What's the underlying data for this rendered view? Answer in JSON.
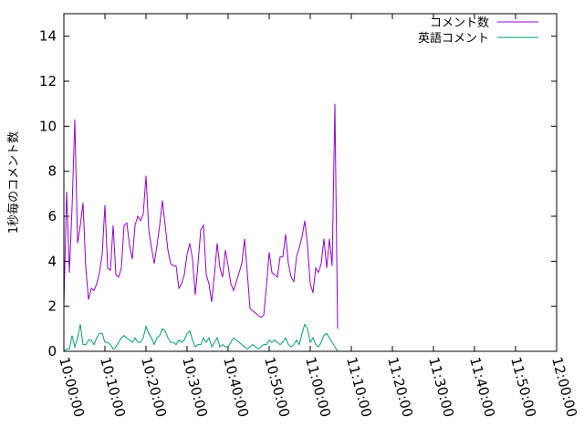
{
  "chart_data": {
    "type": "line",
    "title": "",
    "ylabel": "1秒毎のコメント数",
    "xlabel": "",
    "ylim": [
      0,
      15
    ],
    "xlim": [
      "10:00:00",
      "12:00:00"
    ],
    "y_ticks": [
      "0",
      "2",
      "4",
      "6",
      "8",
      "10",
      "12",
      "14"
    ],
    "x_ticks": [
      "10:00:00",
      "10:10:00",
      "10:20:00",
      "10:30:00",
      "10:40:00",
      "10:50:00",
      "11:00:00",
      "11:10:00",
      "11:20:00",
      "11:30:00",
      "11:40:00",
      "11:50:00",
      "12:00:00"
    ],
    "grid": false,
    "legend_position": "top-right",
    "series": [
      {
        "name": "コメント数",
        "color": "#9400d3",
        "points": [
          [
            "10:00:00",
            2.0
          ],
          [
            "10:00:40",
            7.1
          ],
          [
            "10:01:20",
            3.5
          ],
          [
            "10:02:00",
            6.4
          ],
          [
            "10:02:40",
            10.3
          ],
          [
            "10:03:20",
            4.8
          ],
          [
            "10:04:00",
            5.6
          ],
          [
            "10:04:40",
            6.6
          ],
          [
            "10:05:20",
            3.7
          ],
          [
            "10:06:00",
            2.3
          ],
          [
            "10:06:40",
            2.8
          ],
          [
            "10:07:20",
            2.7
          ],
          [
            "10:08:00",
            3.0
          ],
          [
            "10:08:40",
            3.5
          ],
          [
            "10:09:20",
            4.3
          ],
          [
            "10:10:00",
            6.5
          ],
          [
            "10:10:40",
            3.7
          ],
          [
            "10:11:20",
            3.6
          ],
          [
            "10:12:00",
            5.6
          ],
          [
            "10:12:40",
            3.4
          ],
          [
            "10:13:20",
            3.3
          ],
          [
            "10:14:00",
            3.7
          ],
          [
            "10:14:40",
            5.6
          ],
          [
            "10:15:20",
            5.7
          ],
          [
            "10:16:00",
            4.7
          ],
          [
            "10:16:40",
            4.1
          ],
          [
            "10:17:20",
            5.6
          ],
          [
            "10:18:00",
            6.0
          ],
          [
            "10:18:40",
            5.8
          ],
          [
            "10:19:20",
            6.1
          ],
          [
            "10:20:00",
            7.8
          ],
          [
            "10:20:40",
            5.4
          ],
          [
            "10:21:20",
            4.6
          ],
          [
            "10:22:00",
            3.9
          ],
          [
            "10:22:40",
            4.7
          ],
          [
            "10:23:20",
            5.6
          ],
          [
            "10:24:00",
            6.7
          ],
          [
            "10:24:40",
            5.6
          ],
          [
            "10:25:20",
            4.5
          ],
          [
            "10:26:00",
            3.9
          ],
          [
            "10:26:40",
            3.8
          ],
          [
            "10:27:20",
            3.8
          ],
          [
            "10:28:00",
            2.8
          ],
          [
            "10:28:40",
            3.0
          ],
          [
            "10:29:20",
            3.4
          ],
          [
            "10:30:00",
            4.3
          ],
          [
            "10:30:40",
            4.8
          ],
          [
            "10:31:20",
            4.1
          ],
          [
            "10:32:00",
            2.5
          ],
          [
            "10:32:40",
            3.9
          ],
          [
            "10:33:20",
            5.4
          ],
          [
            "10:34:00",
            5.6
          ],
          [
            "10:34:40",
            3.4
          ],
          [
            "10:35:20",
            3.0
          ],
          [
            "10:36:00",
            2.2
          ],
          [
            "10:36:40",
            3.4
          ],
          [
            "10:37:20",
            4.8
          ],
          [
            "10:38:00",
            3.7
          ],
          [
            "10:38:40",
            3.3
          ],
          [
            "10:39:20",
            4.5
          ],
          [
            "10:40:00",
            3.8
          ],
          [
            "10:40:40",
            3.0
          ],
          [
            "10:41:20",
            2.7
          ],
          [
            "10:42:00",
            3.1
          ],
          [
            "10:42:40",
            3.5
          ],
          [
            "10:43:20",
            3.9
          ],
          [
            "10:44:00",
            5.0
          ],
          [
            "10:44:40",
            3.5
          ],
          [
            "10:45:20",
            1.9
          ],
          [
            "10:46:00",
            1.8
          ],
          [
            "10:46:40",
            1.7
          ],
          [
            "10:47:20",
            1.6
          ],
          [
            "10:48:00",
            1.5
          ],
          [
            "10:48:40",
            1.6
          ],
          [
            "10:49:20",
            2.9
          ],
          [
            "10:50:00",
            4.4
          ],
          [
            "10:50:40",
            3.5
          ],
          [
            "10:51:20",
            3.4
          ],
          [
            "10:52:00",
            3.3
          ],
          [
            "10:52:40",
            4.2
          ],
          [
            "10:53:20",
            4.2
          ],
          [
            "10:54:00",
            5.2
          ],
          [
            "10:54:40",
            3.9
          ],
          [
            "10:55:20",
            3.3
          ],
          [
            "10:56:00",
            3.1
          ],
          [
            "10:56:40",
            4.2
          ],
          [
            "10:57:20",
            4.6
          ],
          [
            "10:58:00",
            5.1
          ],
          [
            "10:58:40",
            5.8
          ],
          [
            "10:59:20",
            4.7
          ],
          [
            "11:00:00",
            3.0
          ],
          [
            "11:00:40",
            2.6
          ],
          [
            "11:01:20",
            3.7
          ],
          [
            "11:02:00",
            3.5
          ],
          [
            "11:02:40",
            3.9
          ],
          [
            "11:03:20",
            5.0
          ],
          [
            "11:04:00",
            3.7
          ],
          [
            "11:04:40",
            5.0
          ],
          [
            "11:05:20",
            3.8
          ],
          [
            "11:06:00",
            11.0
          ],
          [
            "11:06:40",
            1.0
          ]
        ]
      },
      {
        "name": "英語コメント",
        "color": "#009e73",
        "points": [
          [
            "10:00:00",
            0.0
          ],
          [
            "10:00:40",
            0.1
          ],
          [
            "10:01:20",
            0.1
          ],
          [
            "10:02:00",
            0.7
          ],
          [
            "10:02:40",
            0.2
          ],
          [
            "10:03:20",
            0.6
          ],
          [
            "10:04:00",
            1.2
          ],
          [
            "10:04:40",
            0.3
          ],
          [
            "10:05:20",
            0.3
          ],
          [
            "10:06:00",
            0.5
          ],
          [
            "10:06:40",
            0.5
          ],
          [
            "10:07:20",
            0.3
          ],
          [
            "10:08:00",
            0.6
          ],
          [
            "10:08:40",
            0.8
          ],
          [
            "10:09:20",
            0.8
          ],
          [
            "10:10:00",
            0.4
          ],
          [
            "10:10:40",
            0.4
          ],
          [
            "10:11:20",
            0.3
          ],
          [
            "10:12:00",
            0.1
          ],
          [
            "10:12:40",
            0.2
          ],
          [
            "10:13:20",
            0.4
          ],
          [
            "10:14:00",
            0.6
          ],
          [
            "10:14:40",
            0.7
          ],
          [
            "10:15:20",
            0.6
          ],
          [
            "10:16:00",
            0.5
          ],
          [
            "10:16:40",
            0.4
          ],
          [
            "10:17:20",
            0.6
          ],
          [
            "10:18:00",
            0.4
          ],
          [
            "10:18:40",
            0.4
          ],
          [
            "10:19:20",
            0.6
          ],
          [
            "10:20:00",
            1.1
          ],
          [
            "10:20:40",
            0.8
          ],
          [
            "10:21:20",
            0.6
          ],
          [
            "10:22:00",
            0.3
          ],
          [
            "10:22:40",
            0.6
          ],
          [
            "10:23:20",
            0.7
          ],
          [
            "10:24:00",
            1.0
          ],
          [
            "10:24:40",
            0.9
          ],
          [
            "10:25:20",
            0.6
          ],
          [
            "10:26:00",
            0.4
          ],
          [
            "10:26:40",
            0.4
          ],
          [
            "10:27:20",
            0.3
          ],
          [
            "10:28:00",
            0.5
          ],
          [
            "10:28:40",
            0.4
          ],
          [
            "10:29:20",
            0.5
          ],
          [
            "10:30:00",
            0.8
          ],
          [
            "10:30:40",
            0.9
          ],
          [
            "10:31:20",
            0.5
          ],
          [
            "10:32:00",
            0.2
          ],
          [
            "10:32:40",
            0.3
          ],
          [
            "10:33:20",
            0.3
          ],
          [
            "10:34:00",
            0.6
          ],
          [
            "10:34:40",
            0.4
          ],
          [
            "10:35:20",
            0.6
          ],
          [
            "10:36:00",
            0.2
          ],
          [
            "10:36:40",
            0.4
          ],
          [
            "10:37:20",
            0.6
          ],
          [
            "10:38:00",
            0.2
          ],
          [
            "10:38:40",
            0.3
          ],
          [
            "10:39:20",
            0.2
          ],
          [
            "10:40:00",
            0.2
          ],
          [
            "10:40:40",
            0.4
          ],
          [
            "10:41:20",
            0.6
          ],
          [
            "10:42:00",
            0.5
          ],
          [
            "10:42:40",
            0.4
          ],
          [
            "10:43:20",
            0.3
          ],
          [
            "10:44:00",
            0.2
          ],
          [
            "10:44:40",
            0.1
          ],
          [
            "10:45:20",
            0.2
          ],
          [
            "10:46:00",
            0.3
          ],
          [
            "10:46:40",
            0.2
          ],
          [
            "10:47:20",
            0.1
          ],
          [
            "10:48:00",
            0.2
          ],
          [
            "10:48:40",
            0.3
          ],
          [
            "10:49:20",
            0.3
          ],
          [
            "10:50:00",
            0.5
          ],
          [
            "10:50:40",
            0.4
          ],
          [
            "10:51:20",
            0.5
          ],
          [
            "10:52:00",
            0.4
          ],
          [
            "10:52:40",
            0.3
          ],
          [
            "10:53:20",
            0.4
          ],
          [
            "10:54:00",
            0.6
          ],
          [
            "10:54:40",
            0.3
          ],
          [
            "10:55:20",
            0.2
          ],
          [
            "10:56:00",
            0.3
          ],
          [
            "10:56:40",
            0.5
          ],
          [
            "10:57:20",
            0.3
          ],
          [
            "10:58:00",
            0.8
          ],
          [
            "10:58:40",
            1.2
          ],
          [
            "10:59:20",
            1.0
          ],
          [
            "11:00:00",
            0.4
          ],
          [
            "11:00:40",
            0.6
          ],
          [
            "11:01:20",
            0.3
          ],
          [
            "11:02:00",
            0.2
          ],
          [
            "11:02:40",
            0.4
          ],
          [
            "11:03:20",
            0.7
          ],
          [
            "11:04:00",
            0.8
          ],
          [
            "11:04:40",
            0.6
          ],
          [
            "11:05:20",
            0.4
          ],
          [
            "11:06:00",
            0.2
          ],
          [
            "11:06:40",
            0.0
          ]
        ]
      }
    ]
  }
}
